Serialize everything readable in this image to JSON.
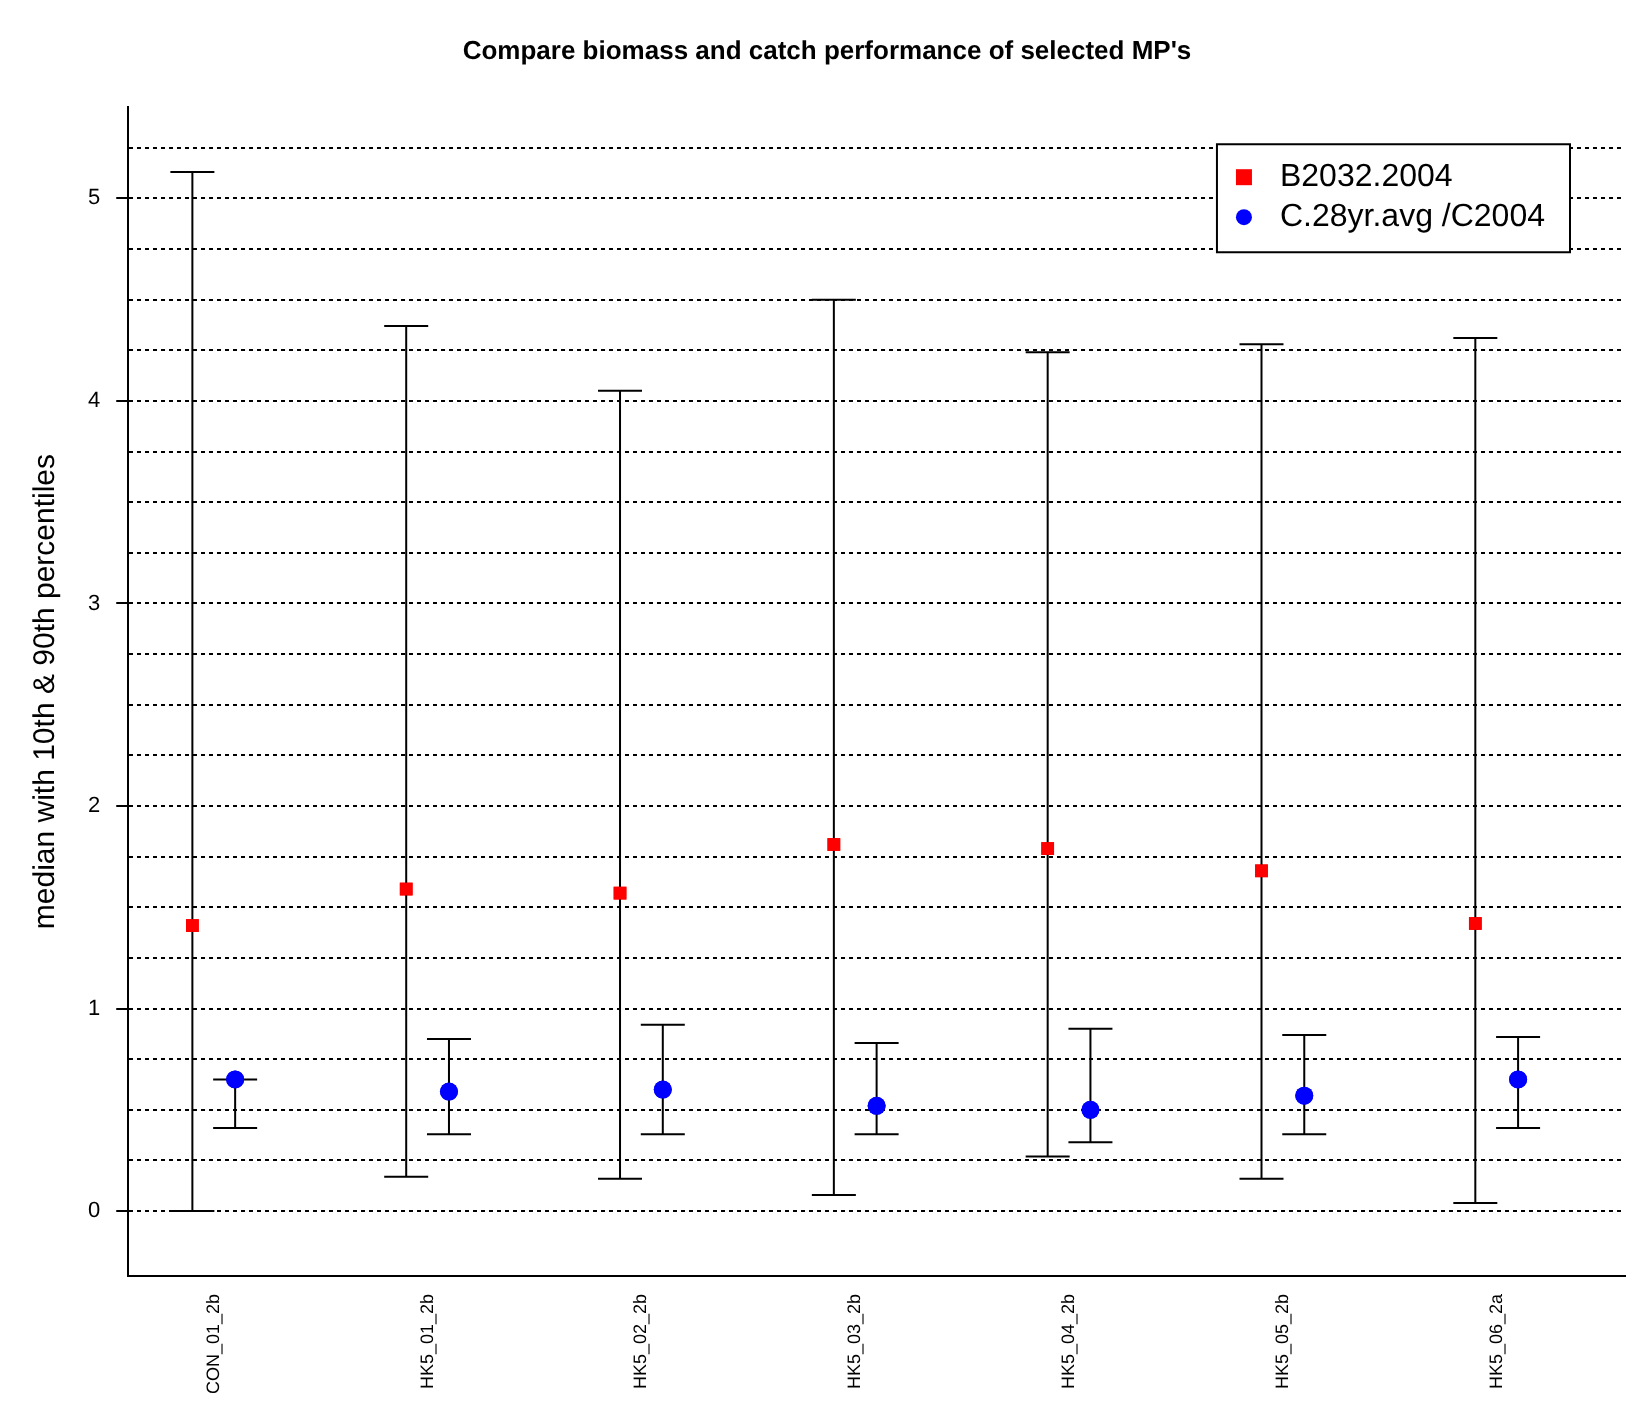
{
  "chart_data": {
    "type": "scatter",
    "title": "Compare biomass and catch performance of selected MP's",
    "ylabel": "median with 10th & 90th percentiles",
    "categories": [
      "CON_01_2b",
      "HK5_01_2b",
      "HK5_02_2b",
      "HK5_03_2b",
      "HK5_04_2b",
      "HK5_05_2b",
      "HK5_06_2a"
    ],
    "series": [
      {
        "name": "B2032.2004",
        "color": "#ff0000",
        "marker": "square",
        "values": [
          1.41,
          1.59,
          1.57,
          1.81,
          1.79,
          1.68,
          1.42
        ],
        "errors": [
          [
            0,
            5.13
          ],
          [
            0.17,
            4.37
          ],
          [
            0.16,
            4.05
          ],
          [
            0.08,
            4.5
          ],
          [
            0.27,
            4.24
          ],
          [
            0.16,
            4.28
          ],
          [
            0.04,
            4.31
          ]
        ]
      },
      {
        "name": "C.28yr.avg /C2004",
        "color": "#0000ff",
        "marker": "circle",
        "values": [
          0.65,
          0.59,
          0.6,
          0.52,
          0.5,
          0.57,
          0.65
        ],
        "errors": [
          [
            0.41,
            0.65
          ],
          [
            0.38,
            0.85
          ],
          [
            0.38,
            0.92
          ],
          [
            0.38,
            0.83
          ],
          [
            0.34,
            0.9
          ],
          [
            0.38,
            0.87
          ],
          [
            0.41,
            0.86
          ]
        ]
      }
    ],
    "ylim": [
      -0.32,
      5.45
    ],
    "yticks": [
      0,
      {
        "value": 0.25,
        "label": null
      },
      {
        "value": 0.5,
        "label": null
      },
      {
        "value": 0.75,
        "label": null
      },
      1,
      {
        "value": 1.25,
        "label": null
      },
      {
        "value": 1.5,
        "label": null
      },
      {
        "value": 1.75,
        "label": null
      },
      2,
      {
        "value": 2.25,
        "label": null
      },
      {
        "value": 2.5,
        "label": null
      },
      {
        "value": 2.75,
        "label": null
      },
      3,
      {
        "value": 3.25,
        "label": null
      },
      {
        "value": 3.5,
        "label": null
      },
      {
        "value": 3.75,
        "label": null
      },
      4,
      {
        "value": 4.25,
        "label": null
      },
      {
        "value": 4.5,
        "label": null
      },
      {
        "value": 4.75,
        "label": null
      },
      5,
      {
        "value": 5.25,
        "label": null
      }
    ],
    "grid": "y",
    "legend": "top right"
  }
}
